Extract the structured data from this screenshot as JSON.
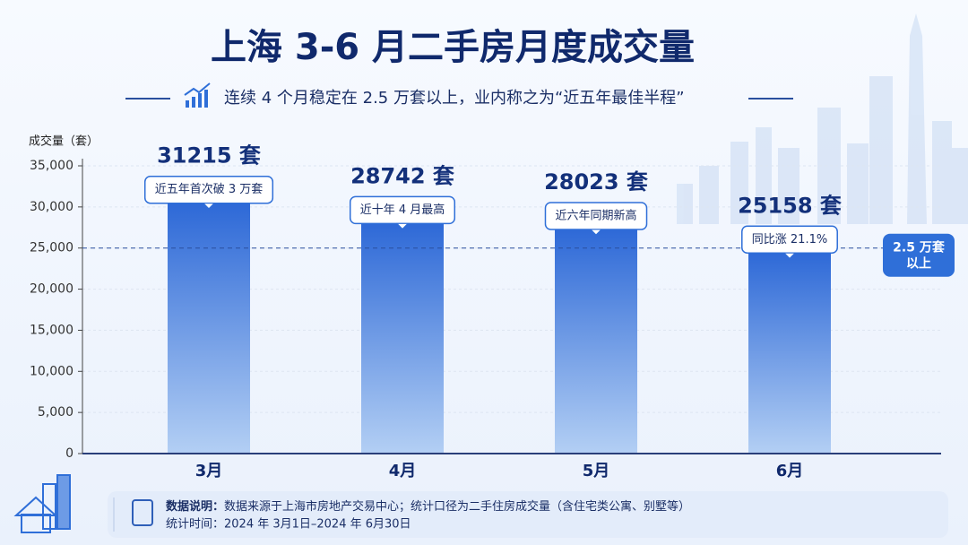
{
  "chart_data": {
    "type": "bar",
    "title": "上海 3-6 月二手房月度成交量",
    "subtitle": "连续 4 个月稳定在 2.5 万套以上，业内称之为“近五年最佳半程”",
    "y_label": "成交量（套）",
    "categories": [
      "3月",
      "4月",
      "5月",
      "6月"
    ],
    "values": [
      31215,
      28742,
      28023,
      25158
    ],
    "value_labels": [
      "31215 套",
      "28742 套",
      "28023 套",
      "25158 套"
    ],
    "annotations": [
      "近五年首次破 3 万套",
      "近十年 4 月最高",
      "近六年同期新高",
      "同比涨 21.1%"
    ],
    "color": "#2f6fd8",
    "ylim": [
      0,
      35000
    ],
    "yticks": [
      0,
      {
        "value": 5000,
        "label": "5,000"
      },
      {
        "value": 10000,
        "label": "10,000"
      },
      {
        "value": 15000,
        "label": "15,000"
      },
      {
        "value": 20000,
        "label": "20,000"
      },
      {
        "value": 25000,
        "label": "25,000"
      },
      {
        "value": 30000,
        "label": "30,000"
      },
      {
        "value": 35000,
        "label": "35,000"
      }
    ],
    "grid": true,
    "reference_line": {
      "value": 25000,
      "label": [
        "2.5 万套",
        "以上"
      ]
    },
    "notes": {
      "note_label": "数据说明：",
      "note": "数据来源于上海市房地产交易中心；统计口径为二手住房成交量（含住宅类公寓、别墅等）",
      "period": "统计时间：2024 年 3月1日–2024 年 6月30日"
    }
  }
}
